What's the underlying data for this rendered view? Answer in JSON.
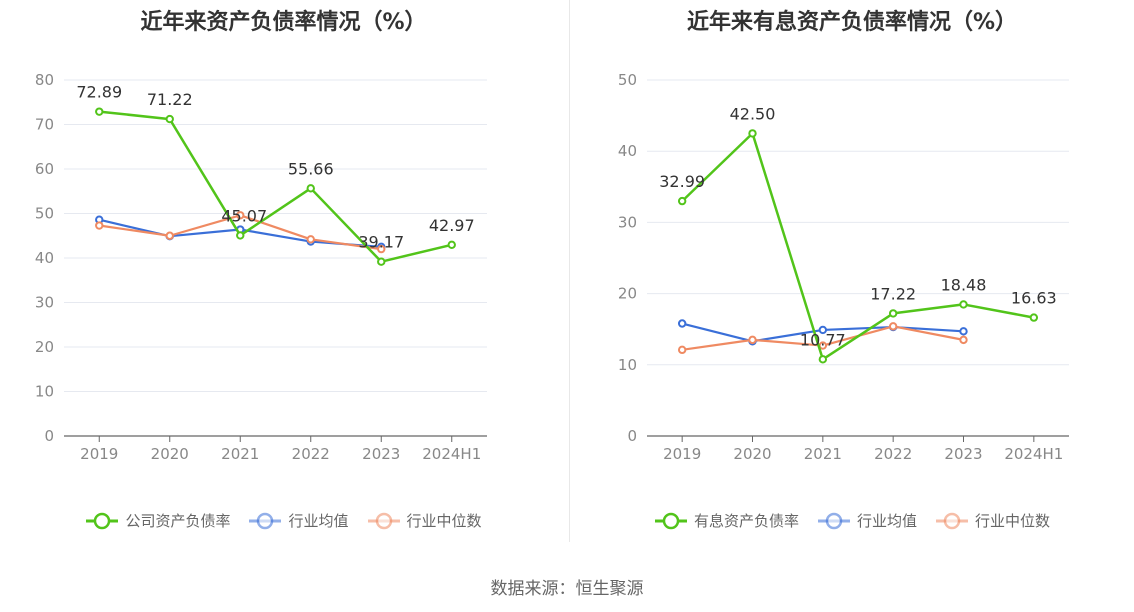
{
  "colors": {
    "company": "#52c41a",
    "industry_avg": "#3a6fd8",
    "industry_median": "#ef8a62",
    "grid": "#e6e9f0",
    "axis": "#888888"
  },
  "chart_data": [
    {
      "type": "line",
      "title": "近年来资产负债率情况（%）",
      "categories": [
        "2019",
        "2020",
        "2021",
        "2022",
        "2023",
        "2024H1"
      ],
      "ylim": [
        0,
        80
      ],
      "yticks": [
        0,
        10,
        20,
        30,
        40,
        50,
        60,
        70,
        80
      ],
      "grid": true,
      "legend_position": "bottom",
      "series": [
        {
          "name": "公司资产负债率",
          "color": "#52c41a",
          "values": [
            72.89,
            71.22,
            45.07,
            55.66,
            39.17,
            42.97
          ],
          "labels": [
            "72.89",
            "71.22",
            "45.07",
            "55.66",
            "39.17",
            "42.97"
          ]
        },
        {
          "name": "行业均值",
          "color": "#3a6fd8",
          "values": [
            48.6,
            44.9,
            46.4,
            43.7,
            42.5,
            null
          ]
        },
        {
          "name": "行业中位数",
          "color": "#ef8a62",
          "values": [
            47.3,
            45.0,
            49.6,
            44.2,
            42.0,
            null
          ]
        }
      ]
    },
    {
      "type": "line",
      "title": "近年来有息资产负债率情况（%）",
      "categories": [
        "2019",
        "2020",
        "2021",
        "2022",
        "2023",
        "2024H1"
      ],
      "ylim": [
        0,
        50
      ],
      "yticks": [
        0,
        10,
        20,
        30,
        40,
        50
      ],
      "grid": true,
      "legend_position": "bottom",
      "series": [
        {
          "name": "有息资产负债率",
          "color": "#52c41a",
          "values": [
            32.99,
            42.5,
            10.77,
            17.22,
            18.48,
            16.63
          ],
          "labels": [
            "32.99",
            "42.50",
            "10.77",
            "17.22",
            "18.48",
            "16.63"
          ]
        },
        {
          "name": "行业均值",
          "color": "#3a6fd8",
          "values": [
            15.8,
            13.3,
            14.9,
            15.3,
            14.7,
            null
          ]
        },
        {
          "name": "行业中位数",
          "color": "#ef8a62",
          "values": [
            12.1,
            13.5,
            12.7,
            15.4,
            13.5,
            null
          ]
        }
      ]
    }
  ],
  "source": "数据来源：恒生聚源"
}
